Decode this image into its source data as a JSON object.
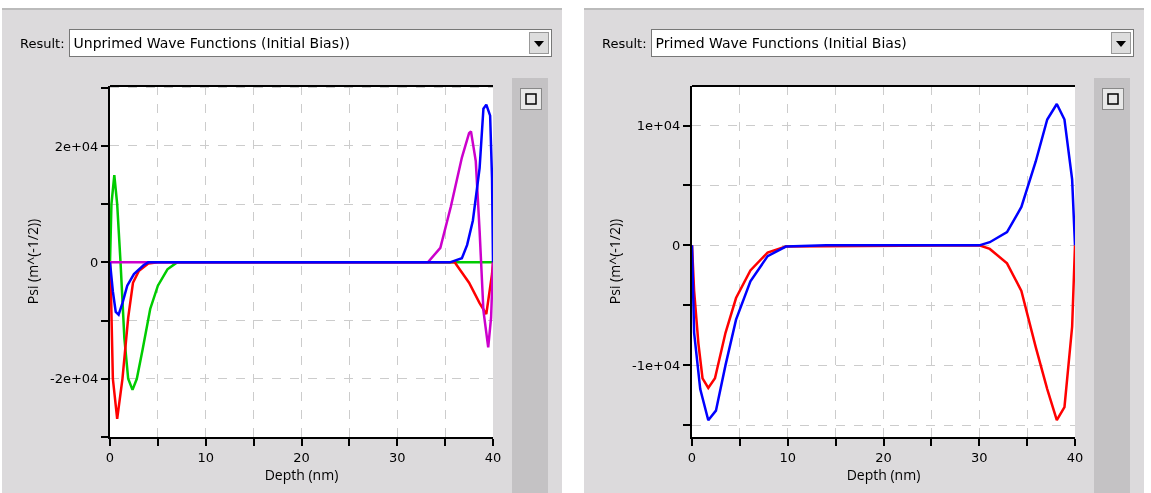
{
  "chart_data": [
    {
      "type": "line",
      "title": "Unprimed Wave Functions (Initial Bias))",
      "annotations": [
        "Result:"
      ],
      "xlabel": "Depth (nm)",
      "ylabel": "Psi (m^(-1/2))",
      "xlim": [
        0,
        40
      ],
      "ylim": [
        -30000,
        30300
      ],
      "xticks": [
        0,
        {
          "value": 5,
          "label": null
        },
        10,
        {
          "value": 15,
          "label": null
        },
        20,
        {
          "value": 25,
          "label": null
        },
        30,
        {
          "value": 35,
          "label": null
        },
        40
      ],
      "yticks": [
        {
          "value": -30000,
          "label": null
        },
        {
          "value": -20000,
          "label": "-2e+04"
        },
        {
          "value": -10000,
          "label": null
        },
        0,
        {
          "value": 10000,
          "label": null
        },
        {
          "value": 20000,
          "label": "2e+04"
        },
        {
          "value": 30000,
          "label": null
        }
      ],
      "grid": true,
      "marker": "none",
      "line_style": "solid",
      "series": [
        {
          "color": "#00cc00",
          "x": [
            0,
            0.15,
            0.45,
            0.75,
            1.1,
            1.5,
            1.9,
            2.35,
            2.8,
            3.4,
            4.2,
            5,
            6,
            7,
            40
          ],
          "values": [
            0,
            10000,
            15000,
            10000,
            0,
            -13000,
            -20000,
            -21900,
            -20000,
            -15000,
            -8000,
            -4000,
            -1200,
            0,
            0
          ]
        },
        {
          "color": "#ff0000",
          "x": [
            0,
            0.1,
            0.3,
            0.75,
            1.3,
            1.9,
            2.4,
            3,
            4,
            5,
            36,
            37.5,
            38.6,
            39.3,
            39.9,
            40
          ],
          "values": [
            0,
            -5000,
            -20000,
            -26900,
            -20000,
            -9500,
            -3500,
            -1500,
            -200,
            0,
            0,
            -3500,
            -7000,
            -8900,
            -2000,
            0
          ]
        },
        {
          "color": "#cc00cc",
          "x": [
            0,
            33.2,
            34.5,
            35.6,
            36.75,
            37.5,
            37.7,
            38.2,
            38.6,
            39,
            39.5,
            39.8,
            40
          ],
          "values": [
            0,
            0,
            2500,
            9600,
            18000,
            22200,
            22500,
            17400,
            5400,
            -8300,
            -14600,
            -9500,
            0
          ]
        },
        {
          "color": "#0000ff",
          "x": [
            0,
            0.3,
            0.6,
            0.9,
            1.3,
            1.8,
            2.5,
            3.5,
            4,
            35.5,
            36.75,
            37.3,
            37.9,
            38.6,
            39,
            39.3,
            39.7,
            39.9,
            40
          ],
          "values": [
            0,
            -5000,
            -8500,
            -9000,
            -7000,
            -4000,
            -2000,
            -500,
            0,
            0,
            700,
            3000,
            7200,
            16200,
            26400,
            27100,
            25200,
            14400,
            0
          ]
        }
      ]
    },
    {
      "type": "line",
      "title": "Primed Wave Functions (Initial Bias)",
      "annotations": [
        "Result:"
      ],
      "xlabel": "Depth (nm)",
      "ylabel": "Psi (m^(-1/2))",
      "xlim": [
        0,
        40
      ],
      "ylim": [
        -16000,
        13300
      ],
      "xticks": [
        0,
        {
          "value": 5,
          "label": null
        },
        10,
        {
          "value": 15,
          "label": null
        },
        20,
        {
          "value": 25,
          "label": null
        },
        30,
        {
          "value": 35,
          "label": null
        },
        40
      ],
      "yticks": [
        {
          "value": -15000,
          "label": null
        },
        {
          "value": -10000,
          "label": "-1e+04"
        },
        {
          "value": -5000,
          "label": null
        },
        0,
        {
          "value": 5000,
          "label": null
        },
        {
          "value": 10000,
          "label": "1e+04"
        }
      ],
      "grid": true,
      "marker": "none",
      "line_style": "solid",
      "series": [
        {
          "color": "#ff0000",
          "x": [
            0,
            0.22,
            0.67,
            1.1,
            1.7,
            2.4,
            3.5,
            4.6,
            6.1,
            7.9,
            9.8,
            30,
            31.1,
            32.9,
            34.4,
            35.9,
            37.1,
            38.1,
            38.9,
            39.7,
            40
          ],
          "values": [
            0,
            -3800,
            -8200,
            -11100,
            -11900,
            -11100,
            -7300,
            -4400,
            -2100,
            -600,
            -100,
            0,
            -300,
            -1500,
            -3800,
            -8500,
            -12000,
            -14600,
            -13500,
            -6800,
            0
          ]
        },
        {
          "color": "#0000ff",
          "x": [
            0,
            0.22,
            0.86,
            1.7,
            2.5,
            3.5,
            4.6,
            6.1,
            7.9,
            9.8,
            14,
            30,
            31.1,
            32.9,
            34.4,
            35.9,
            37.1,
            38.1,
            38.9,
            39.7,
            40
          ],
          "values": [
            0,
            -7300,
            -12000,
            -14600,
            -13800,
            -10000,
            -6200,
            -3000,
            -900,
            -100,
            0,
            0,
            260,
            1100,
            3200,
            7000,
            10500,
            11800,
            10500,
            5500,
            0
          ]
        }
      ]
    }
  ]
}
